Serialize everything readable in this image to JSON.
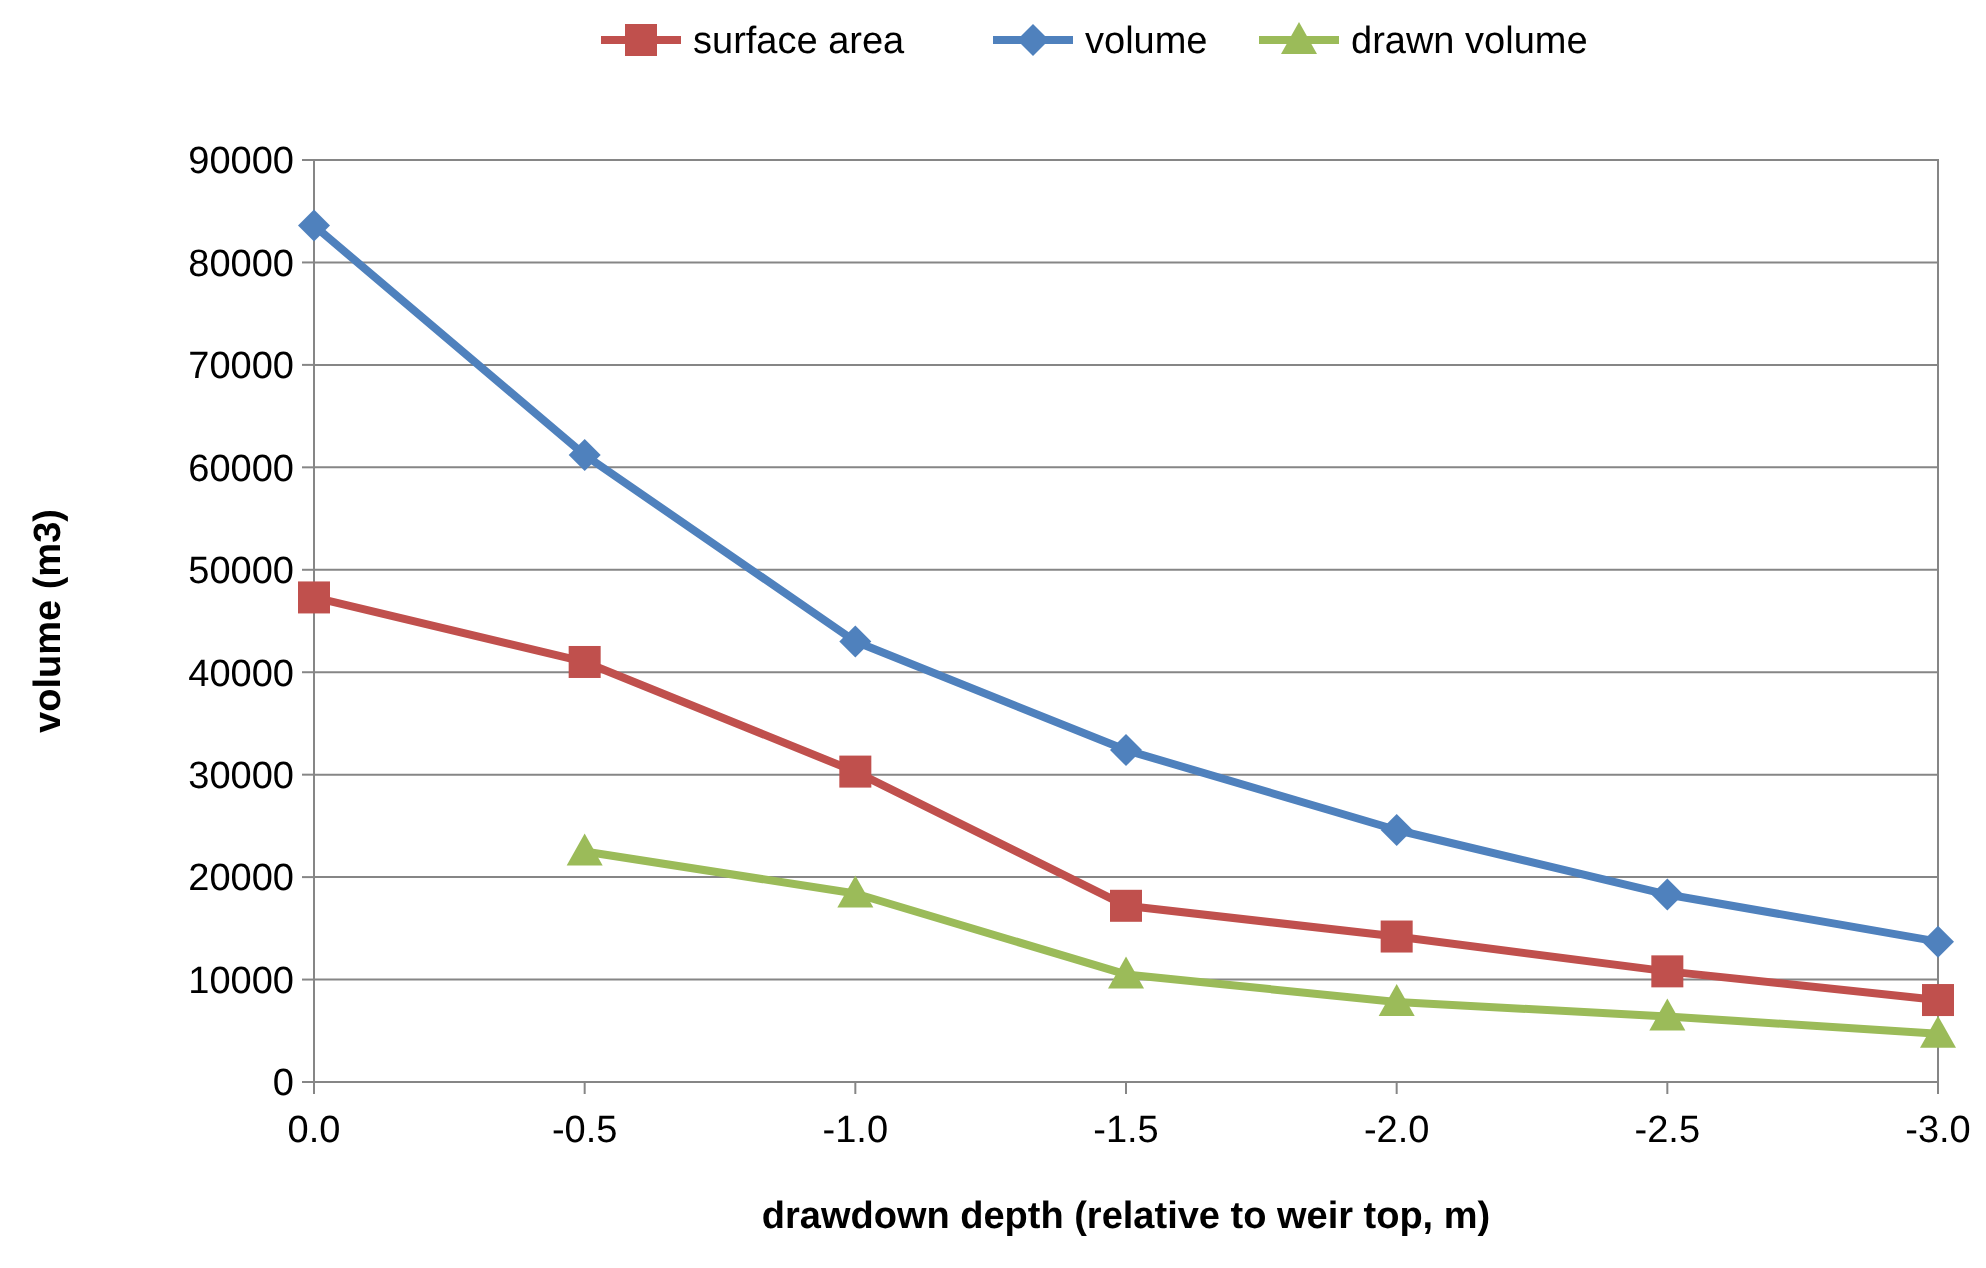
{
  "chart_data": {
    "type": "line",
    "xlabel": "drawdown depth (relative to weir top, m)",
    "ylabel": "volume (m3)",
    "x": [
      0,
      -0.5,
      -1,
      -1.5,
      -2,
      -2.5,
      -3
    ],
    "xlim": [
      0,
      -3
    ],
    "xticks": [
      {
        "value": 0,
        "label": "0.0"
      },
      {
        "value": -0.5,
        "label": "-0.5"
      },
      {
        "value": -1,
        "label": "-1.0"
      },
      {
        "value": -1.5,
        "label": "-1.5"
      },
      {
        "value": -2,
        "label": "-2.0"
      },
      {
        "value": -2.5,
        "label": "-2.5"
      },
      {
        "value": -3,
        "label": "-3.0"
      }
    ],
    "ylim": [
      0,
      90000
    ],
    "yticks": [
      0,
      10000,
      20000,
      30000,
      40000,
      50000,
      60000,
      70000,
      80000,
      90000
    ],
    "grid": "y",
    "legend": "top",
    "series": [
      {
        "name": "surface area",
        "color": "#c0504d",
        "marker": "square",
        "values": [
          47300,
          41000,
          30300,
          17200,
          14200,
          10800,
          8000
        ]
      },
      {
        "name": "volume",
        "color": "#4f81bd",
        "marker": "diamond",
        "values": [
          83600,
          61200,
          43000,
          32400,
          24600,
          18300,
          13700
        ]
      },
      {
        "name": "drawn volume",
        "color": "#9bbb59",
        "marker": "triangle",
        "values": [
          null,
          22500,
          18400,
          10500,
          7800,
          6400,
          4700
        ]
      }
    ]
  }
}
